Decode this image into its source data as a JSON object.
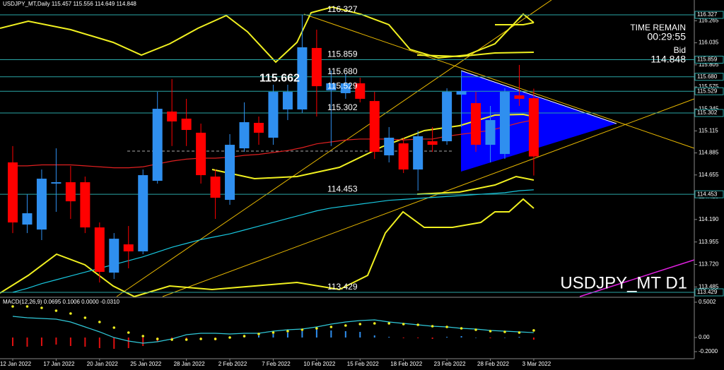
{
  "chart_data": [
    {
      "type": "candlestick",
      "title": "USDJPY_MT,Daily  115.457 115.556 114.649 114.848",
      "watermark": "USDJPY_MT D1",
      "timer_title": "TIME REMAIN",
      "timer": "00:29:55",
      "bid_label": "Bid",
      "bid": 114.848,
      "ylim": [
        113.385,
        116.482
      ],
      "yticks": [
        116.265,
        116.035,
        115.805,
        115.575,
        115.345,
        115.115,
        114.885,
        114.655,
        114.425,
        {
          "value": 114.19,
          "label": "114.190"
        },
        113.955,
        {
          "value": 113.72,
          "label": "113.720"
        },
        113.485
      ],
      "categories": [
        "12 Jan 2022",
        null,
        null,
        "17 Jan 2022",
        null,
        null,
        "20 Jan 2022",
        null,
        null,
        "25 Jan 2022",
        null,
        null,
        "28 Jan 2022",
        null,
        null,
        "2 Feb 2022",
        null,
        null,
        "7 Feb 2022",
        null,
        null,
        "10 Feb 2022",
        null,
        null,
        "15 Feb 2022",
        null,
        null,
        "18 Feb 2022",
        null,
        null,
        "23 Feb 2022",
        null,
        null,
        "28 Feb 2022",
        null,
        null,
        "3 Mar 2022"
      ],
      "open": [
        114.786,
        114.137,
        114.085,
        114.565,
        114.579,
        114.579,
        114.107,
        113.635,
        113.93,
        113.857,
        114.594,
        115.317,
        115.243,
        115.096,
        114.638,
        114.395,
        114.933,
        115.199,
        115.044,
        115.339,
        115.339,
        115.981,
        115.538,
        115.509,
        115.612,
        115.427,
        114.86,
        114.985,
        114.712,
        115.007,
        115.007,
        115.494,
        115.405,
        114.97,
        114.874,
        115.486,
        115.457
      ],
      "high": [
        114.957,
        114.454,
        114.712,
        114.933,
        114.749,
        114.638,
        114.159,
        114.048,
        114.122,
        114.712,
        115.523,
        115.656,
        115.45,
        115.191,
        114.712,
        115.081,
        115.413,
        115.265,
        115.597,
        115.597,
        116.327,
        116.172,
        115.745,
        115.708,
        115.671,
        115.523,
        115.155,
        115.044,
        115.118,
        115.155,
        115.56,
        115.745,
        115.523,
        115.376,
        115.56,
        115.804,
        115.556
      ],
      "low": [
        114.048,
        114.048,
        113.975,
        114.27,
        114.196,
        114.048,
        113.532,
        113.569,
        113.68,
        113.827,
        114.565,
        114.957,
        114.957,
        114.565,
        114.196,
        114.343,
        114.896,
        114.97,
        114.97,
        115.228,
        115.302,
        115.265,
        114.957,
        115.45,
        115.413,
        114.823,
        114.786,
        114.675,
        114.491,
        114.896,
        114.97,
        115.155,
        114.896,
        114.786,
        114.823,
        115.376,
        114.649
      ],
      "close": [
        114.159,
        114.255,
        114.616,
        114.579,
        114.38,
        114.107,
        113.643,
        113.989,
        113.857,
        114.653,
        115.346,
        115.214,
        115.125,
        114.653,
        114.417,
        114.97,
        115.206,
        115.096,
        115.523,
        115.523,
        115.988,
        115.582,
        115.612,
        115.612,
        115.45,
        114.896,
        115.044,
        114.712,
        115.059,
        114.97,
        115.523,
        115.531,
        114.97,
        115.228,
        115.523,
        115.45,
        114.848
      ],
      "bull_color": "#2f8fef",
      "bear_color": "#ff0000",
      "overlays": [
        {
          "color": "#e02020",
          "values": [
            114.75,
            114.75,
            114.76,
            114.76,
            114.76,
            114.75,
            114.74,
            114.73,
            114.73,
            114.74,
            114.77,
            114.8,
            114.82,
            114.83,
            114.83,
            114.84,
            114.86,
            114.87,
            114.89,
            114.91,
            114.94,
            114.98,
            115.0,
            115.02,
            115.03,
            115.03,
            115.03,
            115.02,
            115.03,
            115.03,
            115.06,
            115.08,
            115.1,
            115.12,
            115.16,
            115.2,
            115.23
          ]
        },
        {
          "color": "#18c8e0",
          "values": [
            113.43,
            113.47,
            113.52,
            113.56,
            113.6,
            113.64,
            113.68,
            113.72,
            113.76,
            113.8,
            113.85,
            113.9,
            113.94,
            113.98,
            114.01,
            114.04,
            114.08,
            114.12,
            114.16,
            114.2,
            114.24,
            114.28,
            114.31,
            114.33,
            114.35,
            114.37,
            114.39,
            114.4,
            114.41,
            114.42,
            114.43,
            114.44,
            114.45,
            114.46,
            114.47,
            114.49,
            114.5
          ]
        }
      ],
      "levels": [
        116.327,
        115.859,
        115.68,
        115.529,
        115.302,
        114.453,
        113.429
      ],
      "level_labels": [
        "116.327",
        "115.859",
        "115.680",
        "115.529",
        "115.302",
        "114.453",
        "113.429"
      ],
      "level_color": "#2aa6a6",
      "peak_label": 115.662
    },
    {
      "type": "macd",
      "title": "MACD(12,26,9) 0.0695 0.1006 0.0000 -0.0310",
      "ylim": [
        -0.3,
        0.55
      ],
      "yticks": [
        0.5002,
        {
          "value": 0,
          "label": "0.00"
        },
        {
          "value": -0.2,
          "label": "-0.2000"
        }
      ],
      "histogram": [
        -0.12,
        -0.13,
        -0.12,
        -0.1,
        -0.12,
        -0.13,
        -0.15,
        -0.16,
        -0.15,
        -0.12,
        -0.06,
        -0.03,
        -0.02,
        -0.03,
        -0.04,
        -0.01,
        0.02,
        0.03,
        0.05,
        0.07,
        0.09,
        0.12,
        0.1,
        0.09,
        0.08,
        0.03,
        0.01,
        -0.01,
        -0.01,
        -0.02,
        0.01,
        0.02,
        0.0,
        -0.01,
        0.0,
        0.01,
        -0.031
      ],
      "macd": [
        0.3,
        0.28,
        0.27,
        0.26,
        0.22,
        0.15,
        0.08,
        0.0,
        -0.05,
        -0.08,
        -0.06,
        -0.02,
        0.04,
        0.06,
        0.06,
        0.05,
        0.06,
        0.06,
        0.09,
        0.11,
        0.12,
        0.15,
        0.19,
        0.22,
        0.24,
        0.25,
        0.22,
        0.2,
        0.18,
        0.16,
        0.15,
        0.13,
        0.12,
        0.1,
        0.09,
        0.08,
        0.0695
      ],
      "signal": [
        0.44,
        0.44,
        0.42,
        0.38,
        0.34,
        0.28,
        0.22,
        0.14,
        0.07,
        0.02,
        -0.02,
        -0.03,
        -0.03,
        -0.02,
        -0.02,
        0.0,
        0.02,
        0.05,
        0.07,
        0.09,
        0.11,
        0.13,
        0.15,
        0.17,
        0.19,
        0.2,
        0.2,
        0.19,
        0.18,
        0.16,
        0.15,
        0.13,
        0.11,
        0.09,
        0.08,
        0.07,
        0.1006
      ],
      "pos_color": "#2f8fef",
      "neg_color": "#e01010",
      "macd_color": "#30c8d8",
      "signal_color": "#f0f020"
    }
  ]
}
